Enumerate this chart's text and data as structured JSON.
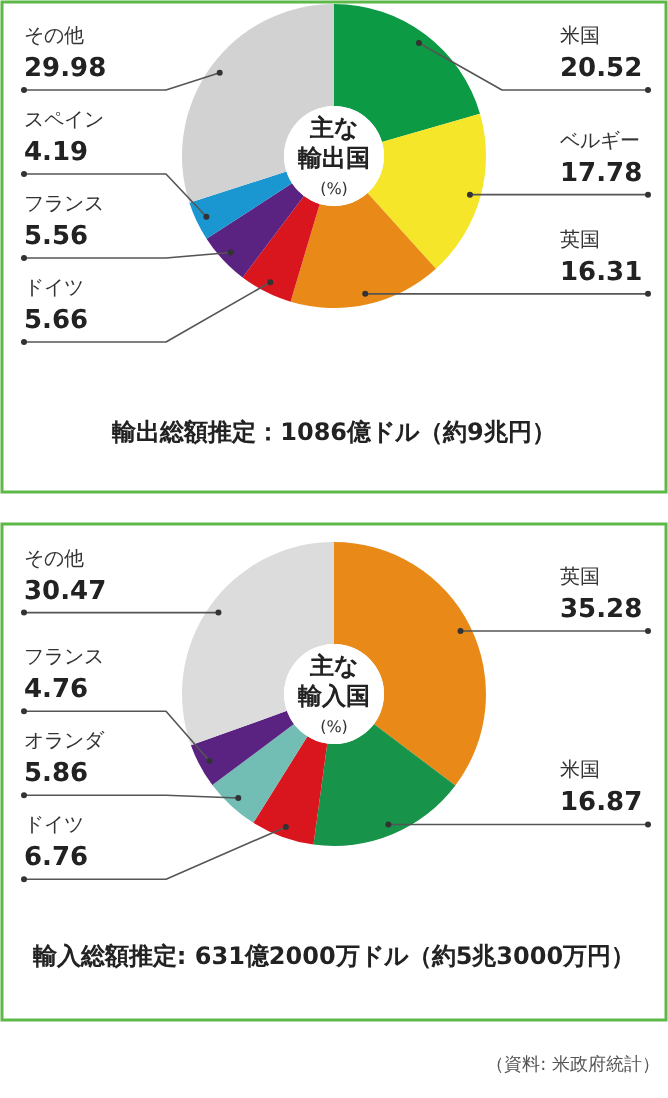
{
  "chart_data": [
    {
      "type": "donut",
      "title": "主な輸出国",
      "subtitle": "(%)",
      "categories": [
        "米国",
        "ベルギー",
        "英国",
        "ドイツ",
        "フランス",
        "スペイン",
        "その他"
      ],
      "values": [
        20.52,
        17.78,
        16.31,
        5.66,
        5.56,
        4.19,
        29.98
      ],
      "colors": [
        "#0d9a45",
        "#f5e62a",
        "#e98a18",
        "#d9161e",
        "#5a2382",
        "#1a96d0",
        "#d2d2d2"
      ],
      "data_labels": true,
      "annotations": [
        "輸出総額推定：1086億ドル（約9兆円）"
      ]
    },
    {
      "type": "donut",
      "title": "主な輸入国",
      "subtitle": "(%)",
      "categories": [
        "英国",
        "米国",
        "ドイツ",
        "オランダ",
        "フランス",
        "その他"
      ],
      "values": [
        35.28,
        16.87,
        6.76,
        5.86,
        4.76,
        30.47
      ],
      "colors": [
        "#e98a18",
        "#17934a",
        "#d9161e",
        "#72bdb4",
        "#5a2382",
        "#dcdcdc"
      ],
      "data_labels": true,
      "annotations": [
        "輸入総額推定: 631億2000万ドル（約5兆3000万円）",
        "（資料: 米政府統計）"
      ]
    }
  ]
}
